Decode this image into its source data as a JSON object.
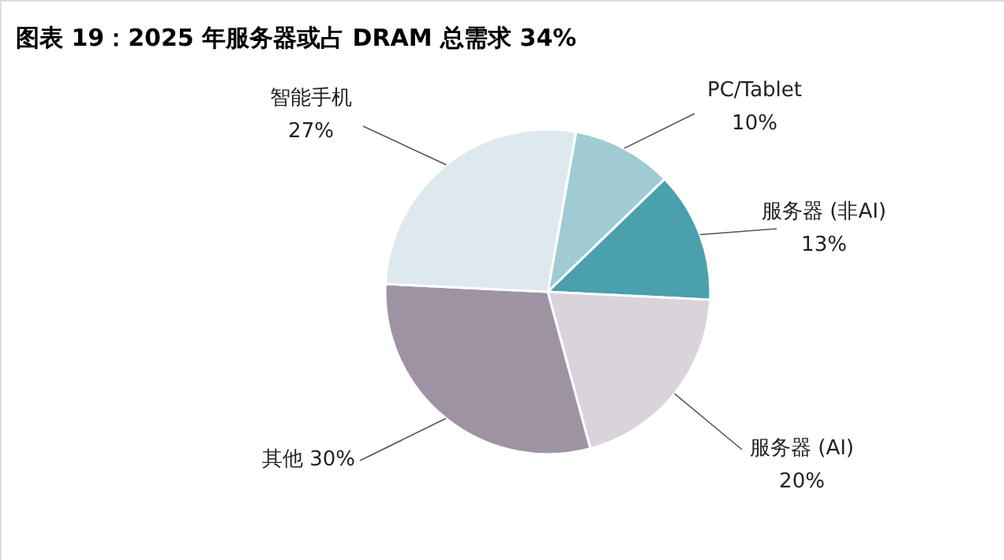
{
  "chart_data": {
    "type": "pie",
    "title": "图表 19：2025 年服务器或占 DRAM 总需求 34%",
    "categories": [
      "PC/Tablet",
      "服务器 (非AI)",
      "服务器 (AI)",
      "其他",
      "智能手机"
    ],
    "values": [
      10,
      13,
      20,
      30,
      27
    ],
    "value_labels": [
      "10%",
      "13%",
      "20%",
      "30%",
      "27%"
    ],
    "colors": [
      "#9fcbd3",
      "#4aa0ad",
      "#d9d4dc",
      "#9e93a3",
      "#dde9ee"
    ]
  }
}
